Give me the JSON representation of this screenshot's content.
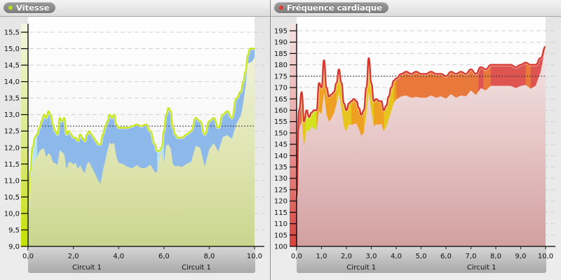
{
  "panels": {
    "speed": {
      "title": "Vitesse",
      "dot_color": "#a6d91a",
      "y_ticks": [
        "15,5",
        "15,0",
        "14,5",
        "14,0",
        "13,5",
        "13,0",
        "12,5",
        "12,0",
        "11,5",
        "11,0",
        "10,5",
        "10,0",
        "9,5",
        "9,0"
      ],
      "x_ticks": [
        "0,0",
        "2,0",
        "4,0",
        "6,0",
        "8,0",
        "10,0"
      ],
      "segments": [
        "Circuit 1",
        "Circuit 1"
      ]
    },
    "heart_rate": {
      "title": "Fréquence cardiaque",
      "dot_color": "#e03a2e",
      "y_ticks": [
        "195",
        "190",
        "185",
        "180",
        "175",
        "170",
        "165",
        "160",
        "155",
        "150",
        "145",
        "140",
        "135",
        "130",
        "125",
        "120",
        "115",
        "110",
        "105",
        "100"
      ],
      "x_ticks": [
        "0,0",
        "1,0",
        "2,0",
        "3,0",
        "4,0",
        "5,0",
        "6,0",
        "7,0",
        "8,0",
        "9,0",
        "10,0"
      ],
      "segments": [
        "Circuit 1",
        "Circuit 1"
      ]
    }
  },
  "chart_data": [
    {
      "type": "area",
      "title": "Vitesse",
      "xlabel": "Circuit 1",
      "ylabel": "",
      "xlim": [
        0,
        10
      ],
      "ylim": [
        9.0,
        15.5
      ],
      "grid": true,
      "average": 12.65,
      "colors": {
        "line": "#c8e61e",
        "band": "#8cb8ea",
        "band_low": "#b3e3f2",
        "fill": "#d7dfa6"
      },
      "series": [
        {
          "name": "Vitesse",
          "x": [
            0.0,
            0.1,
            0.2,
            0.3,
            0.4,
            0.5,
            0.6,
            0.7,
            0.8,
            0.9,
            1.0,
            1.1,
            1.2,
            1.3,
            1.4,
            1.5,
            1.6,
            1.7,
            1.8,
            1.9,
            2.0,
            2.1,
            2.2,
            2.3,
            2.4,
            2.5,
            2.6,
            2.7,
            2.8,
            2.9,
            3.0,
            3.1,
            3.2,
            3.3,
            3.4,
            3.5,
            3.6,
            3.7,
            3.8,
            3.9,
            4.0,
            4.2,
            4.4,
            4.6,
            4.8,
            5.0,
            5.2,
            5.4,
            5.6,
            5.7,
            5.8,
            5.9,
            6.0,
            6.1,
            6.2,
            6.3,
            6.4,
            6.5,
            6.6,
            6.8,
            7.0,
            7.2,
            7.4,
            7.6,
            7.8,
            8.0,
            8.2,
            8.4,
            8.6,
            8.8,
            9.0,
            9.2,
            9.4,
            9.5,
            9.6,
            9.7,
            9.8,
            9.9,
            10.0
          ],
          "values": [
            10.2,
            11.3,
            12.0,
            12.3,
            12.4,
            12.6,
            12.8,
            13.0,
            12.9,
            13.1,
            13.0,
            12.7,
            12.5,
            12.4,
            12.9,
            12.8,
            12.9,
            12.4,
            12.5,
            12.4,
            12.3,
            12.3,
            12.2,
            12.4,
            12.3,
            12.2,
            12.4,
            12.5,
            12.4,
            12.3,
            12.2,
            12.1,
            12.1,
            12.4,
            12.6,
            12.8,
            13.0,
            12.9,
            13.0,
            12.7,
            12.6,
            12.6,
            12.6,
            12.65,
            12.7,
            12.65,
            12.7,
            12.5,
            12.1,
            11.9,
            11.9,
            12.0,
            12.5,
            13.0,
            13.2,
            13.1,
            12.6,
            12.4,
            12.3,
            12.3,
            12.4,
            12.5,
            12.9,
            12.8,
            12.4,
            12.8,
            12.9,
            12.6,
            13.0,
            13.1,
            12.9,
            13.5,
            13.7,
            14.0,
            14.3,
            14.8,
            15.0,
            15.0,
            15.0
          ]
        }
      ]
    },
    {
      "type": "area",
      "title": "Fréquence cardiaque",
      "xlabel": "Circuit 1",
      "ylabel": "",
      "xlim": [
        0,
        10
      ],
      "ylim": [
        100,
        195
      ],
      "grid": true,
      "average": 175,
      "zone_colors": [
        "#d4e11e",
        "#e6c51f",
        "#eea022",
        "#e8793a",
        "#dd5450"
      ],
      "series": [
        {
          "name": "Fréquence cardiaque",
          "x": [
            0.0,
            0.1,
            0.2,
            0.3,
            0.4,
            0.5,
            0.6,
            0.7,
            0.8,
            0.9,
            1.0,
            1.1,
            1.2,
            1.3,
            1.4,
            1.5,
            1.6,
            1.7,
            1.8,
            1.9,
            2.0,
            2.1,
            2.2,
            2.3,
            2.4,
            2.5,
            2.6,
            2.7,
            2.8,
            2.9,
            3.0,
            3.1,
            3.2,
            3.3,
            3.4,
            3.5,
            3.6,
            3.7,
            3.8,
            3.9,
            4.0,
            4.2,
            4.4,
            4.6,
            4.8,
            5.0,
            5.2,
            5.4,
            5.6,
            5.8,
            6.0,
            6.2,
            6.4,
            6.6,
            6.8,
            7.0,
            7.2,
            7.4,
            7.6,
            7.8,
            8.0,
            8.2,
            8.4,
            8.6,
            8.8,
            9.0,
            9.2,
            9.4,
            9.6,
            9.8,
            10.0
          ],
          "values": [
            122,
            160,
            168,
            155,
            160,
            157,
            159,
            160,
            160,
            172,
            170,
            182,
            170,
            166,
            167,
            168,
            172,
            178,
            172,
            163,
            160,
            163,
            164,
            165,
            164,
            161,
            158,
            160,
            170,
            183,
            172,
            164,
            165,
            164,
            164,
            160,
            162,
            166,
            170,
            173,
            174,
            176,
            177,
            176,
            177,
            176,
            176,
            177,
            176,
            176,
            175,
            177,
            176,
            177,
            176,
            178,
            176,
            179,
            178,
            180,
            180,
            180,
            180,
            180,
            179,
            180,
            181,
            180,
            180,
            183,
            188
          ]
        }
      ]
    }
  ]
}
